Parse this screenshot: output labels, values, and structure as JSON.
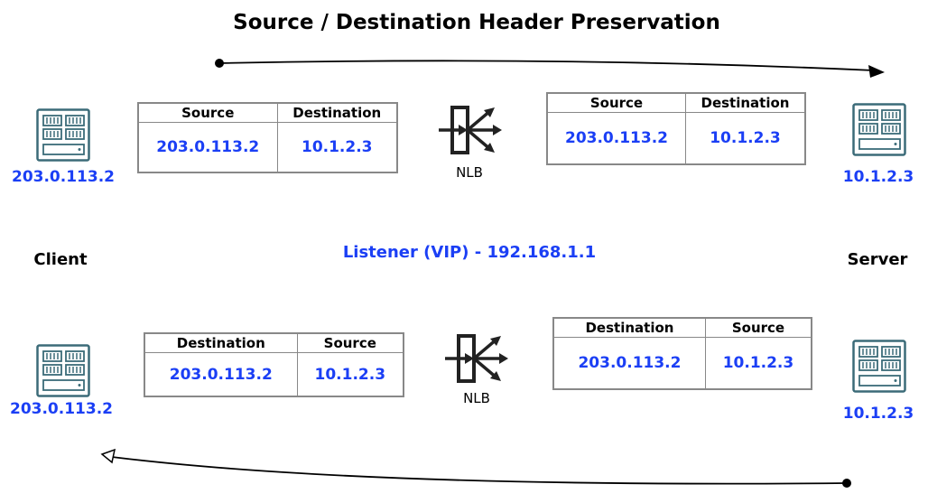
{
  "title": "Source / Destination Header Preservation",
  "listener": "Listener (VIP) - 192.168.1.1",
  "client": {
    "label": "Client",
    "ip": "203.0.113.2"
  },
  "server": {
    "label": "Server",
    "ip": "10.1.2.3"
  },
  "nlb_label": "NLB",
  "colors": {
    "ip": "#1b3ff5",
    "server_icon": "#3b6b78",
    "border": "#888888"
  },
  "request": {
    "client_side": {
      "col1": "Source",
      "col2": "Destination",
      "val1": "203.0.113.2",
      "val2": "10.1.2.3"
    },
    "server_side": {
      "col1": "Source",
      "col2": "Destination",
      "val1": "203.0.113.2",
      "val2": "10.1.2.3"
    }
  },
  "response": {
    "client_side": {
      "col1": "Destination",
      "col2": "Source",
      "val1": "203.0.113.2",
      "val2": "10.1.2.3"
    },
    "server_side": {
      "col1": "Destination",
      "col2": "Source",
      "val1": "203.0.113.2",
      "val2": "10.1.2.3"
    }
  }
}
